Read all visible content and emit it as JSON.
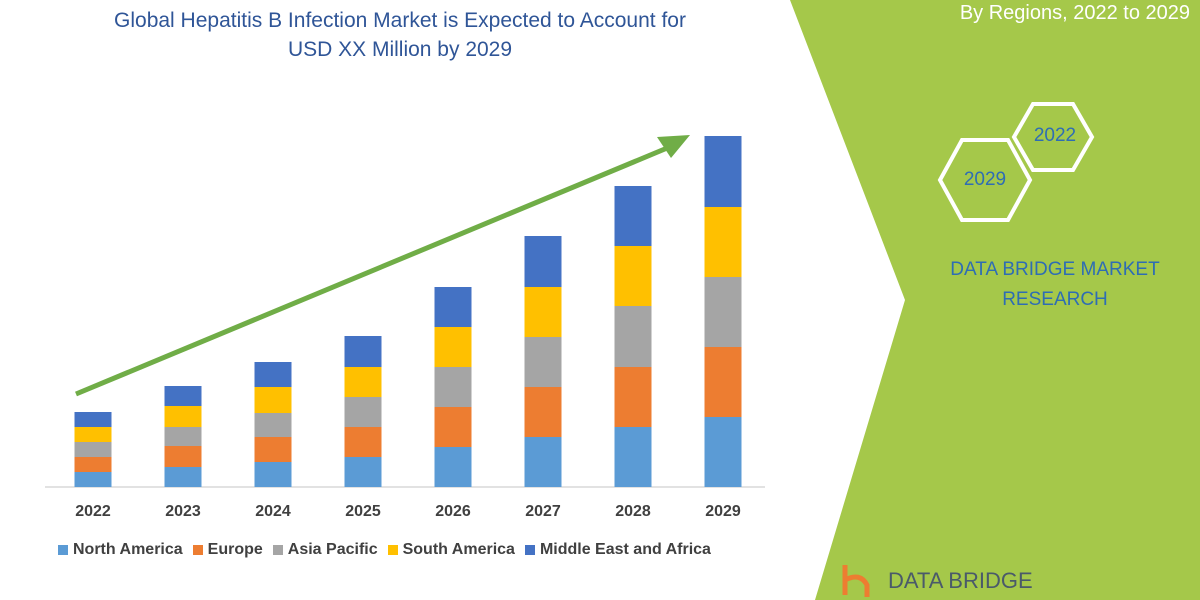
{
  "header": {
    "title_line1": "Global Hepatitis B Infection Market is Expected to Account for",
    "title_line2": "USD XX Million by 2029",
    "right_title": "By Regions, 2022 to 2029"
  },
  "badges": {
    "year_start": "2022",
    "year_end": "2029"
  },
  "brand": {
    "line1": "DATA BRIDGE MARKET",
    "line2": "RESEARCH",
    "logo_text": "DATA BRIDGE"
  },
  "colors": {
    "green_panel": "#a5c84a",
    "arrow": "#70ad47",
    "brand_blue": "#2e6db4"
  },
  "chart_data": {
    "type": "bar",
    "stacked": true,
    "title": "Global Hepatitis B Infection Market is Expected to Account for USD XX Million by 2029",
    "categories": [
      "2022",
      "2023",
      "2024",
      "2025",
      "2026",
      "2027",
      "2028",
      "2029"
    ],
    "series": [
      {
        "name": "North America",
        "color": "#5b9bd5",
        "values": [
          15,
          20,
          25,
          30,
          40,
          50,
          60,
          70
        ]
      },
      {
        "name": "Europe",
        "color": "#ed7d31",
        "values": [
          15,
          21,
          25,
          30,
          40,
          50,
          60,
          70
        ]
      },
      {
        "name": "Asia Pacific",
        "color": "#a5a5a5",
        "values": [
          15,
          19,
          24,
          30,
          40,
          50,
          61,
          70
        ]
      },
      {
        "name": "South America",
        "color": "#ffc000",
        "values": [
          15,
          21,
          26,
          30,
          40,
          50,
          60,
          70
        ]
      },
      {
        "name": "Middle East and Africa",
        "color": "#4472c4",
        "values": [
          15,
          20,
          25,
          31,
          40,
          51,
          60,
          71
        ]
      }
    ],
    "ylim": [
      0,
      360
    ],
    "y_axis_visible": false,
    "grid": false,
    "legend_position": "bottom",
    "annotation": "upward trend arrow"
  }
}
